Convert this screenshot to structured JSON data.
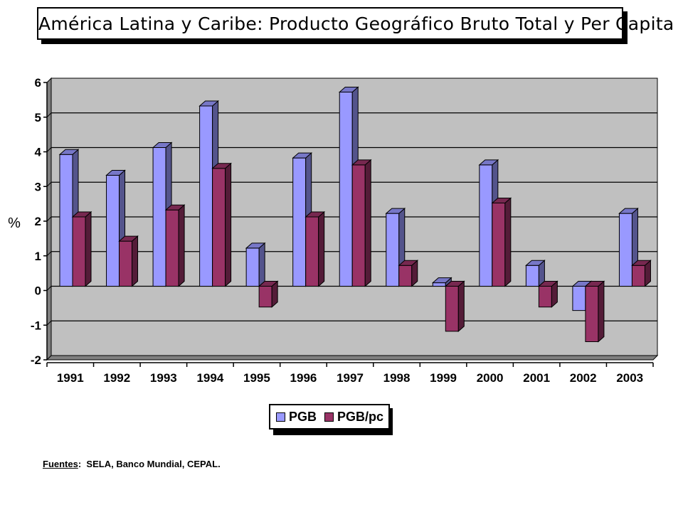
{
  "chart_data": {
    "type": "bar",
    "title": "América Latina y Caribe: Producto Geográfico Bruto Total y Per Capita",
    "ylabel": "%",
    "xlabel": "",
    "categories": [
      "1991",
      "1992",
      "1993",
      "1994",
      "1995",
      "1996",
      "1997",
      "1998",
      "1999",
      "2000",
      "2001",
      "2002",
      "2003"
    ],
    "series": [
      {
        "name": "PGB",
        "color": "#9999ff",
        "values": [
          3.8,
          3.2,
          4.0,
          5.2,
          1.1,
          3.7,
          5.6,
          2.1,
          0.1,
          3.5,
          0.6,
          -0.7,
          2.1
        ]
      },
      {
        "name": "PGB/pc",
        "color": "#993366",
        "values": [
          2.0,
          1.3,
          2.2,
          3.4,
          -0.6,
          2.0,
          3.5,
          0.6,
          -1.3,
          2.4,
          -0.6,
          -1.6,
          0.6
        ]
      }
    ],
    "ylim": [
      -2,
      6
    ],
    "yticks": [
      "-2",
      "-1",
      "0",
      "1",
      "2",
      "3",
      "4",
      "5",
      "6"
    ],
    "grid": true,
    "plot_background": "#c0c0c0",
    "legend_position": "bottom-center",
    "style": "3d-column"
  },
  "footer": {
    "label": "Fuentes",
    "separator": ":",
    "text": "SELA, Banco Mundial, CEPAL."
  }
}
